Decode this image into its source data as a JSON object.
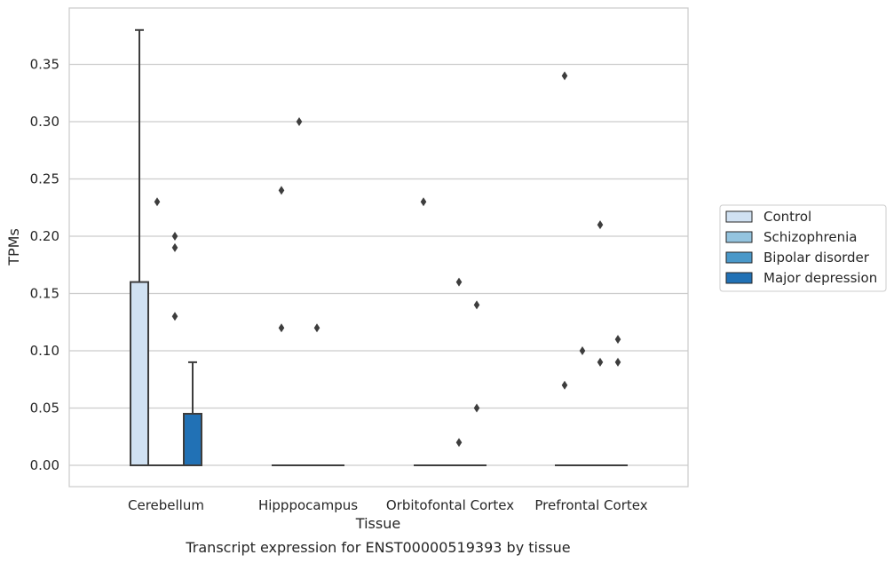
{
  "caption": "Transcript expression for ENST00000519393 by tissue",
  "chart_data": {
    "type": "box",
    "xlabel": "Tissue",
    "ylabel": "TPMs",
    "ylim": [
      -0.018,
      0.397
    ],
    "yticks": [
      "0.00",
      "0.05",
      "0.10",
      "0.15",
      "0.20",
      "0.25",
      "0.30",
      "0.35"
    ],
    "categories": [
      "Cerebellum",
      "Hipppocampus",
      "Orbitofontal Cortex",
      "Prefrontal Cortex"
    ],
    "grid": "horizontal",
    "legend_position": "right",
    "series": [
      {
        "name": "Control",
        "color": "#d0e1f2",
        "boxes": [
          {
            "q1": 0.0,
            "median": 0.0,
            "q3": 0.16,
            "whisker_low": 0.0,
            "whisker_high": 0.38,
            "outliers": []
          },
          {
            "q1": 0.0,
            "median": 0.0,
            "q3": 0.0,
            "whisker_low": 0.0,
            "whisker_high": 0.0,
            "outliers": [
              0.24,
              0.12
            ]
          },
          {
            "q1": 0.0,
            "median": 0.0,
            "q3": 0.0,
            "whisker_low": 0.0,
            "whisker_high": 0.0,
            "outliers": [
              0.23
            ]
          },
          {
            "q1": 0.0,
            "median": 0.0,
            "q3": 0.0,
            "whisker_low": 0.0,
            "whisker_high": 0.0,
            "outliers": [
              0.34,
              0.07
            ]
          }
        ]
      },
      {
        "name": "Schizophrenia",
        "color": "#94c4df",
        "boxes": [
          {
            "q1": 0.0,
            "median": 0.0,
            "q3": 0.0,
            "whisker_low": 0.0,
            "whisker_high": 0.0,
            "outliers": [
              0.23
            ]
          },
          {
            "q1": 0.0,
            "median": 0.0,
            "q3": 0.0,
            "whisker_low": 0.0,
            "whisker_high": 0.0,
            "outliers": [
              0.3
            ]
          },
          {
            "q1": 0.0,
            "median": 0.0,
            "q3": 0.0,
            "whisker_low": 0.0,
            "whisker_high": 0.0,
            "outliers": []
          },
          {
            "q1": 0.0,
            "median": 0.0,
            "q3": 0.0,
            "whisker_low": 0.0,
            "whisker_high": 0.0,
            "outliers": [
              0.1
            ]
          }
        ]
      },
      {
        "name": "Bipolar disorder",
        "color": "#4a98c9",
        "boxes": [
          {
            "q1": 0.0,
            "median": 0.0,
            "q3": 0.0,
            "whisker_low": 0.0,
            "whisker_high": 0.0,
            "outliers": [
              0.2,
              0.19,
              0.13
            ]
          },
          {
            "q1": 0.0,
            "median": 0.0,
            "q3": 0.0,
            "whisker_low": 0.0,
            "whisker_high": 0.0,
            "outliers": [
              0.12
            ]
          },
          {
            "q1": 0.0,
            "median": 0.0,
            "q3": 0.0,
            "whisker_low": 0.0,
            "whisker_high": 0.0,
            "outliers": [
              0.16,
              0.02
            ]
          },
          {
            "q1": 0.0,
            "median": 0.0,
            "q3": 0.0,
            "whisker_low": 0.0,
            "whisker_high": 0.0,
            "outliers": [
              0.21,
              0.09
            ]
          }
        ]
      },
      {
        "name": "Major depression",
        "color": "#2171b5",
        "boxes": [
          {
            "q1": 0.0,
            "median": 0.0,
            "q3": 0.045,
            "whisker_low": 0.0,
            "whisker_high": 0.09,
            "outliers": []
          },
          {
            "q1": 0.0,
            "median": 0.0,
            "q3": 0.0,
            "whisker_low": 0.0,
            "whisker_high": 0.0,
            "outliers": []
          },
          {
            "q1": 0.0,
            "median": 0.0,
            "q3": 0.0,
            "whisker_low": 0.0,
            "whisker_high": 0.0,
            "outliers": [
              0.14,
              0.05
            ]
          },
          {
            "q1": 0.0,
            "median": 0.0,
            "q3": 0.0,
            "whisker_low": 0.0,
            "whisker_high": 0.0,
            "outliers": [
              0.11,
              0.09
            ]
          }
        ]
      }
    ]
  }
}
